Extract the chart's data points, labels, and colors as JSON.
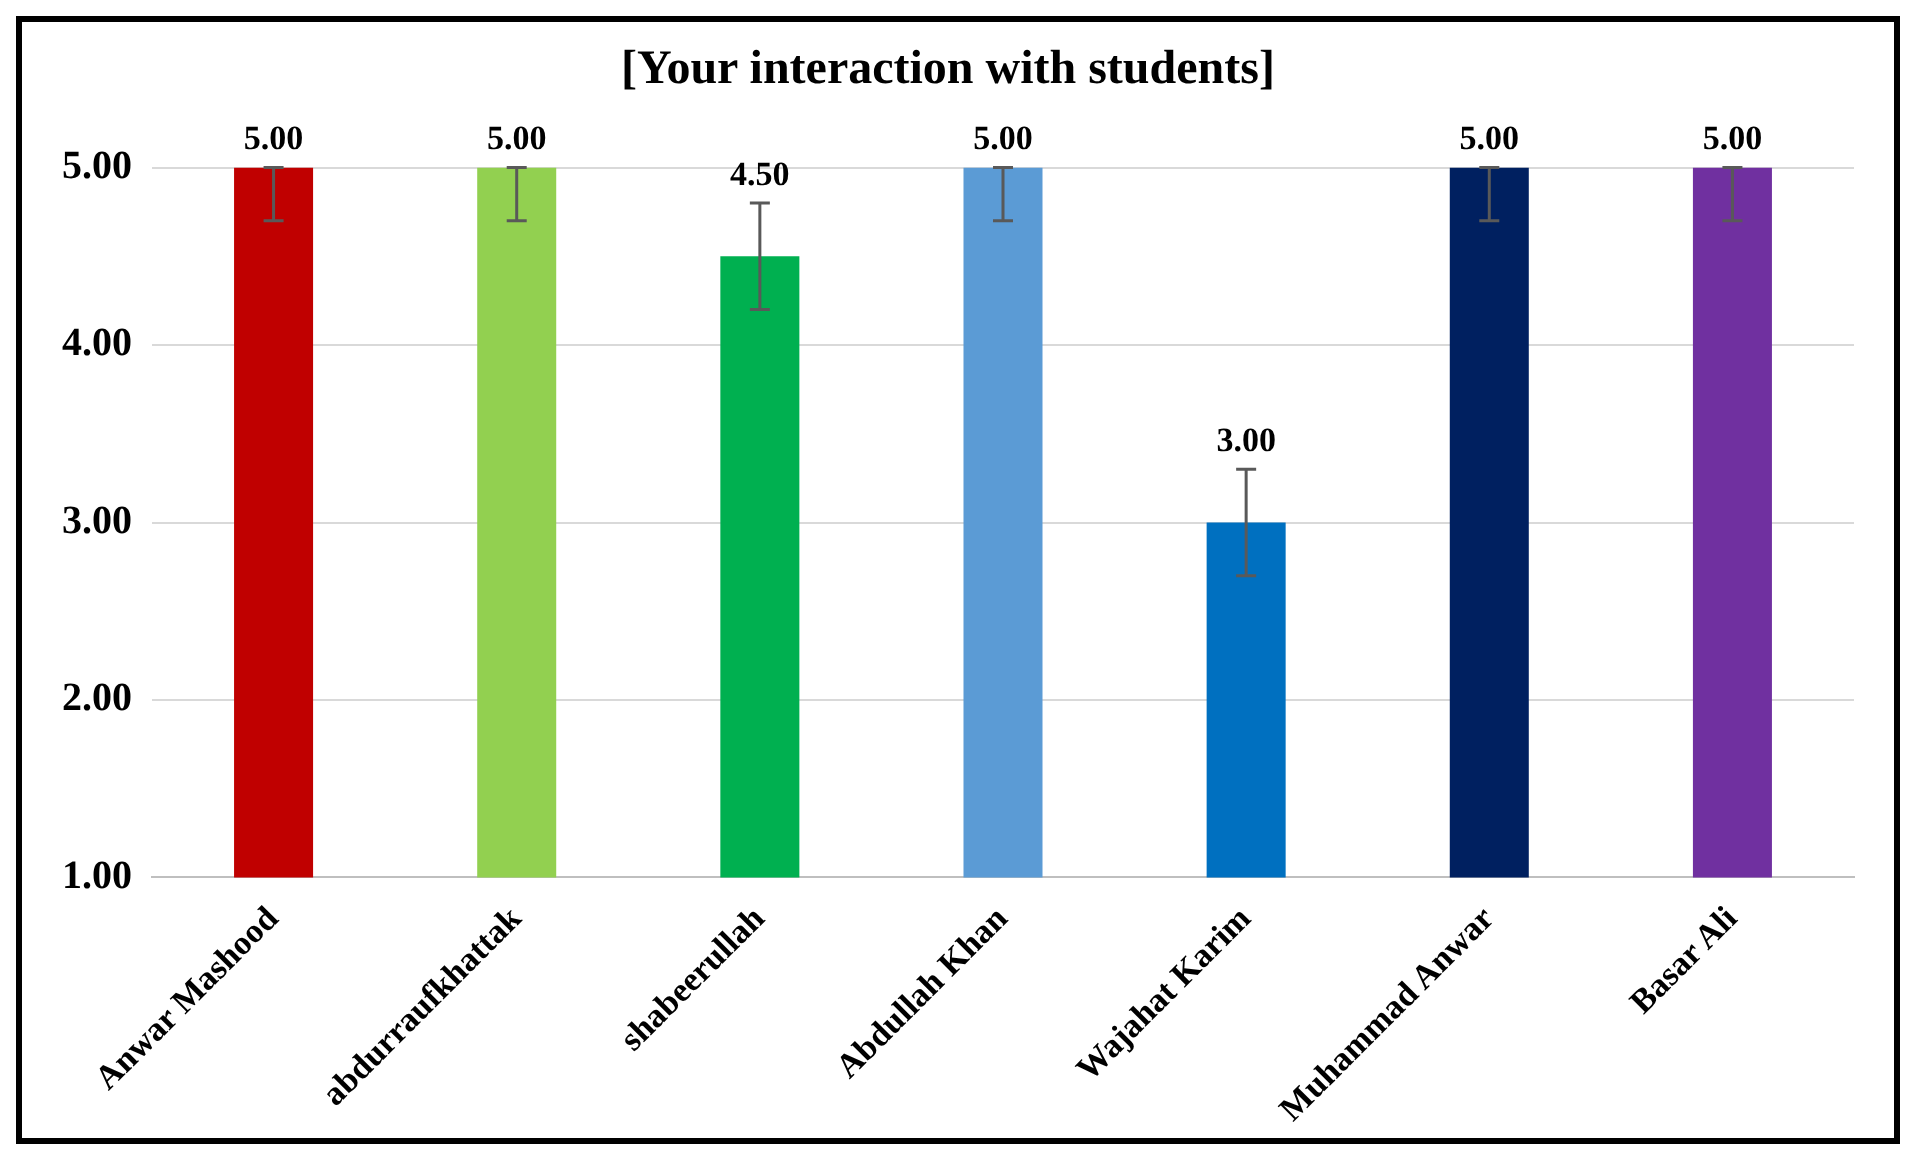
{
  "chart_data": {
    "type": "bar",
    "title": "[Your interaction with students]",
    "categories": [
      "Anwar Mashood",
      "abdurraufkhattak",
      "shabeerullah",
      "Abdullah Khan",
      "Wajahat Karim",
      "Muhammad Anwar",
      "Basar Ali"
    ],
    "values": [
      5,
      5,
      4.5,
      5,
      3,
      5,
      5
    ],
    "colors": [
      "#c00000",
      "#92d050",
      "#00b050",
      "#5b9bd5",
      "#0070c0",
      "#002060",
      "#7030a0"
    ],
    "errors": [
      [
        4.7,
        5
      ],
      [
        4.7,
        5
      ],
      [
        4.2,
        4.8
      ],
      [
        4.7,
        5
      ],
      [
        2.7,
        3.3
      ],
      [
        4.7,
        5
      ],
      [
        4.7,
        5
      ]
    ],
    "value_labels": [
      "5.00",
      "5.00",
      "4.50",
      "5.00",
      "3.00",
      "5.00",
      "5.00"
    ],
    "ylim": [
      1,
      5
    ],
    "yticks": [
      {
        "value": 1,
        "label": "1.00"
      },
      {
        "value": 2,
        "label": "2.00"
      },
      {
        "value": 3,
        "label": "3.00"
      },
      {
        "value": 4,
        "label": "4.00"
      },
      {
        "value": 5,
        "label": "5.00"
      }
    ],
    "grid": "y",
    "legend": false
  }
}
